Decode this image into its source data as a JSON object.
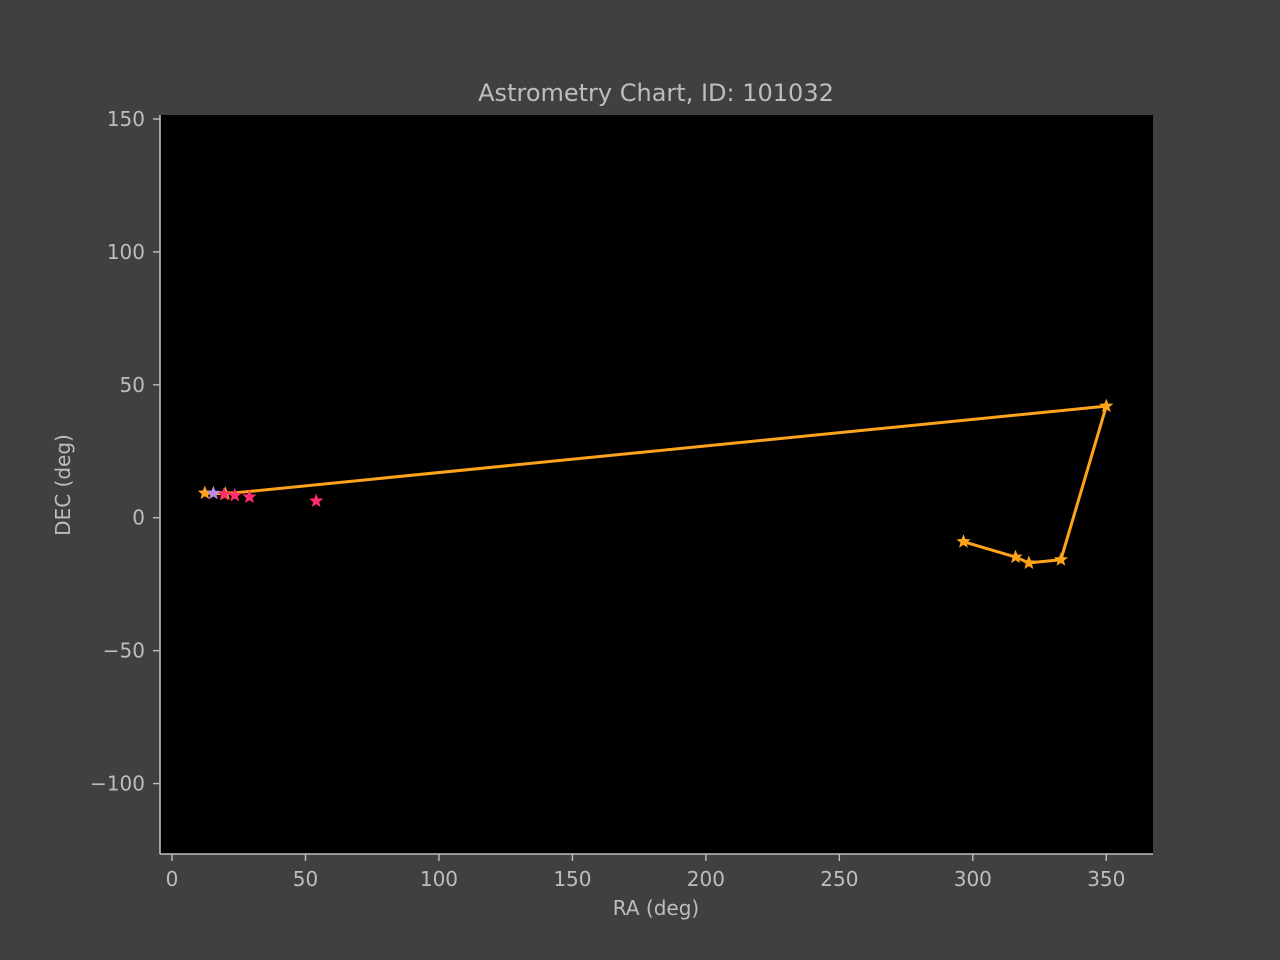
{
  "chart_data": {
    "type": "scatter",
    "title": "Astrometry Chart, ID: 101032",
    "xlabel": "RA (deg)",
    "ylabel": "DEC (deg)",
    "xlim": [
      -4.5,
      367.5
    ],
    "ylim": [
      -126.5,
      151.5
    ],
    "xticks": [
      0,
      50,
      100,
      150,
      200,
      250,
      300,
      350
    ],
    "yticks": [
      150,
      100,
      50,
      0,
      -50,
      -100
    ],
    "ytick_labels": [
      "150",
      "100",
      "50",
      "0",
      "−50",
      "−100"
    ],
    "grid": false,
    "series": [
      {
        "color": "#ffa31a",
        "marker": "star",
        "line": true,
        "points": [
          [
            12.3,
            9.3
          ],
          [
            20.0,
            9.0
          ],
          [
            350.0,
            42.0
          ],
          [
            333.0,
            -15.8
          ],
          [
            321.0,
            -17.0
          ],
          [
            316.0,
            -14.8
          ],
          [
            296.5,
            -9.0
          ]
        ]
      },
      {
        "color": "#ff2d6e",
        "marker": "star",
        "line": false,
        "points": [
          [
            19.5,
            8.8
          ],
          [
            23.5,
            8.4
          ],
          [
            29.0,
            7.8
          ],
          [
            54.0,
            6.3
          ]
        ]
      },
      {
        "color": "#b48ce6",
        "marker": "star",
        "line": false,
        "points": [
          [
            15.5,
            9.2
          ]
        ]
      }
    ],
    "colors": {
      "figure_bg": "#404040",
      "axes_bg": "#000000",
      "axis_fg": "#bdbdbd"
    }
  }
}
